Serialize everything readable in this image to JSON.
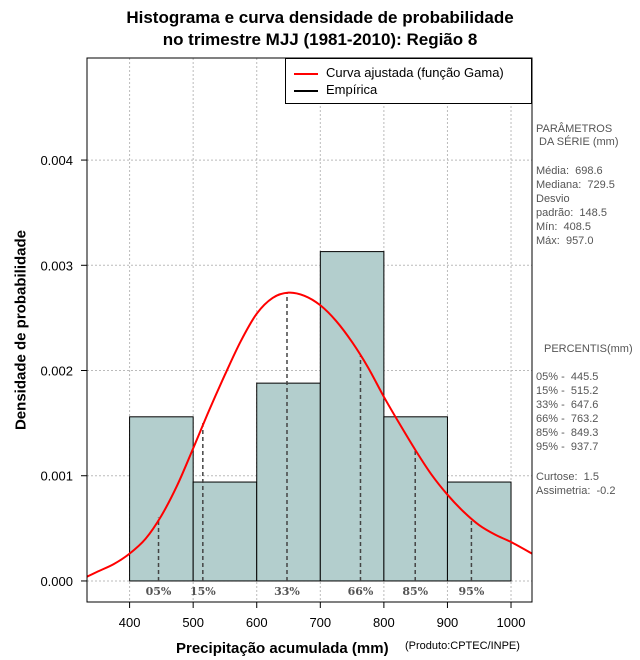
{
  "title_line1": "Histograma e curva densidade de probabilidade",
  "title_line2": "no trimestre MJJ (1981-2010): Região 8",
  "legend": {
    "fitted": "Curva ajustada (função Gama)",
    "empirical": "Empírica"
  },
  "colors": {
    "bar_fill": "#b3cecd",
    "curve": "#ff0000",
    "grid": "#bbbbbb"
  },
  "xlabel": "Precipitação acumulada (mm)",
  "ylabel": "Densidade de probabilidade",
  "credit": "(Produto:CPTEC/INPE)",
  "params": {
    "header1": "PARÂMETROS",
    "header2": " DA SÉRIE (mm)",
    "media": "Média:  698.6",
    "mediana": "Mediana:  729.5",
    "desvio1": "Desvio",
    "desvio2": "padrão:  148.5",
    "min": "Mín:  408.5",
    "max": "Máx:  957.0"
  },
  "percentis": {
    "header": "PERCENTIS(mm)",
    "p05": "05% -  445.5",
    "p15": "15% -  515.2",
    "p33": "33% -  647.6",
    "p66": "66% -  763.2",
    "p85": "85% -  849.3",
    "p95": "95% -  937.7",
    "curtose": "Curtose:  1.5",
    "assimetria": "Assimetria:  -0.2"
  },
  "chart_data": {
    "type": "bar",
    "title": "Histograma e curva densidade de probabilidade no trimestre MJJ (1981-2010): Região 8",
    "xlabel": "Precipitação acumulada (mm)",
    "ylabel": "Densidade de probabilidade",
    "xlim": [
      333,
      1033
    ],
    "ylim": [
      -0.0002,
      0.00497
    ],
    "x_ticks": [
      400,
      500,
      600,
      700,
      800,
      900,
      1000
    ],
    "x_tick_labels": [
      "400",
      "500",
      "600",
      "700",
      "800",
      "900",
      "1000"
    ],
    "y_ticks": [
      0.0,
      0.001,
      0.002,
      0.003,
      0.004
    ],
    "y_tick_labels": [
      "0.000",
      "0.001",
      "0.002",
      "0.003",
      "0.004"
    ],
    "histogram": [
      {
        "x0": 400,
        "x1": 500,
        "density": 0.00156
      },
      {
        "x0": 500,
        "x1": 600,
        "density": 0.00094
      },
      {
        "x0": 600,
        "x1": 700,
        "density": 0.00188
      },
      {
        "x0": 700,
        "x1": 800,
        "density": 0.00313
      },
      {
        "x0": 800,
        "x1": 900,
        "density": 0.00156
      },
      {
        "x0": 900,
        "x1": 1000,
        "density": 0.00094
      }
    ],
    "fitted_curve": {
      "name": "Curva ajustada (função Gama)",
      "x": [
        333,
        350,
        375,
        400,
        425,
        450,
        475,
        500,
        525,
        550,
        575,
        600,
        625,
        650,
        675,
        700,
        725,
        750,
        775,
        800,
        825,
        850,
        875,
        900,
        925,
        950,
        975,
        1000,
        1033
      ],
      "y": [
        4e-05,
        9e-05,
        0.00016,
        0.00026,
        0.0004,
        0.00062,
        0.00091,
        0.00126,
        0.00162,
        0.00196,
        0.00228,
        0.00254,
        0.00269,
        0.00274,
        0.00271,
        0.00262,
        0.00247,
        0.00227,
        0.00203,
        0.00175,
        0.00149,
        0.00124,
        0.00101,
        0.00082,
        0.00066,
        0.00053,
        0.00044,
        0.00037,
        0.00026
      ]
    },
    "percentile_markers": [
      {
        "label": "05%",
        "value": 445.5
      },
      {
        "label": "15%",
        "value": 515.2
      },
      {
        "label": "33%",
        "value": 647.6
      },
      {
        "label": "66%",
        "value": 763.2
      },
      {
        "label": "85%",
        "value": 849.3
      },
      {
        "label": "95%",
        "value": 937.7
      }
    ],
    "legend_position": "top-right",
    "grid": true
  }
}
